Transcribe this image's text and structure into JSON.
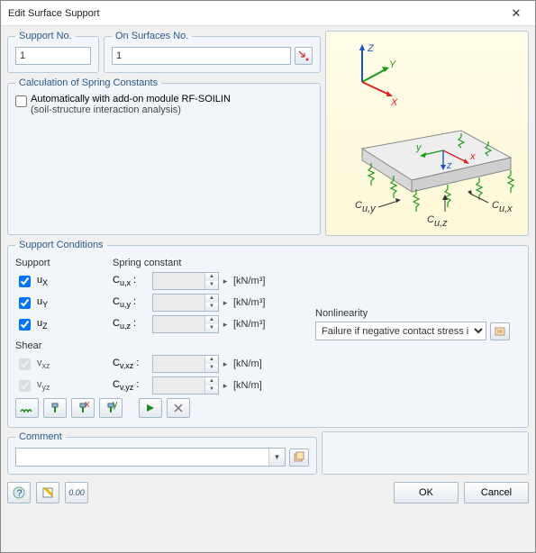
{
  "title": "Edit Surface Support",
  "support_no": {
    "label": "Support No.",
    "value": "1"
  },
  "on_surfaces": {
    "label": "On Surfaces No.",
    "value": "1"
  },
  "calc": {
    "legend": "Calculation of Spring Constants",
    "auto_label": "Automatically with add-on module RF-SOILIN",
    "auto_sub": "(soil-structure interaction analysis)",
    "auto_checked": false
  },
  "conditions": {
    "legend": "Support Conditions",
    "support_header": "Support",
    "spring_header": "Spring constant",
    "shear_header": "Shear",
    "rows": [
      {
        "label_html": "u<sub>X</sub>",
        "checked": true,
        "coef": "C<sub>u,x</sub> :",
        "unit": "[kN/m³]",
        "enabled": true
      },
      {
        "label_html": "u<sub>Y</sub>",
        "checked": true,
        "coef": "C<sub>u,y</sub> :",
        "unit": "[kN/m³]",
        "enabled": true
      },
      {
        "label_html": "u<sub>Z</sub>",
        "checked": true,
        "coef": "C<sub>u,z</sub> :",
        "unit": "[kN/m³]",
        "enabled": true
      }
    ],
    "shear_rows": [
      {
        "label_html": "v<sub>xz</sub>",
        "checked": true,
        "coef": "C<sub>v,xz</sub> :",
        "unit": "[kN/m]",
        "enabled": false
      },
      {
        "label_html": "v<sub>yz</sub>",
        "checked": true,
        "coef": "C<sub>v,yz</sub> :",
        "unit": "[kN/m]",
        "enabled": false
      }
    ],
    "nonlinearity": {
      "label": "Nonlinearity",
      "value": "Failure if negative contact stress in z"
    }
  },
  "comment": {
    "legend": "Comment",
    "value": ""
  },
  "buttons": {
    "ok": "OK",
    "cancel": "Cancel"
  },
  "diagram": {
    "axes": {
      "z_color": "#1954c7",
      "y_color": "#1a9a1a",
      "x_color": "#d22"
    },
    "slab_fill": "#e6e6e6",
    "slab_edge": "#888",
    "spring_color": "#1a9a1a",
    "labels": {
      "cux": "Cu,x",
      "cuy": "Cu,y",
      "cuz": "Cu,z"
    }
  }
}
